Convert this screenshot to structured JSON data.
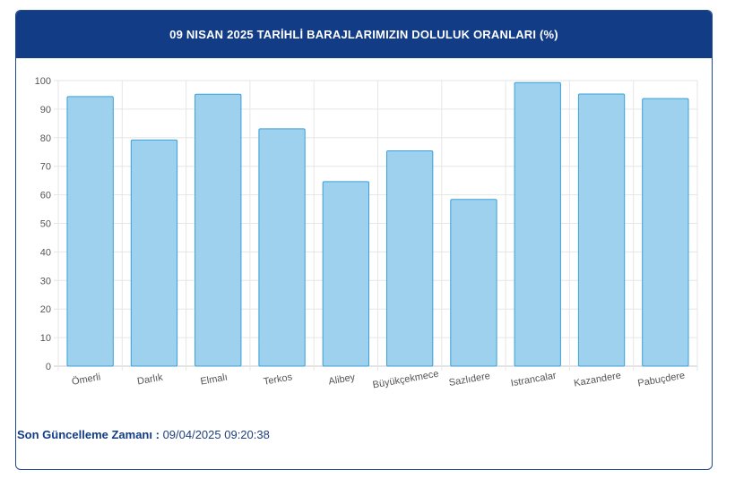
{
  "header": {
    "title": "09 NISAN 2025 TARİHLİ BARAJLARIMIZIN DOLULUK ORANLARI (%)"
  },
  "chart_data": {
    "type": "bar",
    "categories": [
      "Ömerli",
      "Darlık",
      "Elmalı",
      "Terkos",
      "Alibey",
      "Büyükçekmece",
      "Sazlıdere",
      "Istrancalar",
      "Kazandere",
      "Pabuçdere"
    ],
    "values": [
      94.4,
      79.2,
      95.2,
      83.1,
      64.6,
      75.4,
      58.4,
      99.3,
      95.3,
      93.7
    ],
    "ylim": [
      0,
      100
    ],
    "yticks": [
      0,
      10,
      20,
      30,
      40,
      50,
      60,
      70,
      80,
      90,
      100
    ],
    "grid": true,
    "colors": {
      "fill": "#9dd1ee",
      "stroke": "#3aa0d8"
    }
  },
  "footer": {
    "label": "Son Güncelleme Zamanı :",
    "value": "09/04/2025 09:20:38"
  }
}
